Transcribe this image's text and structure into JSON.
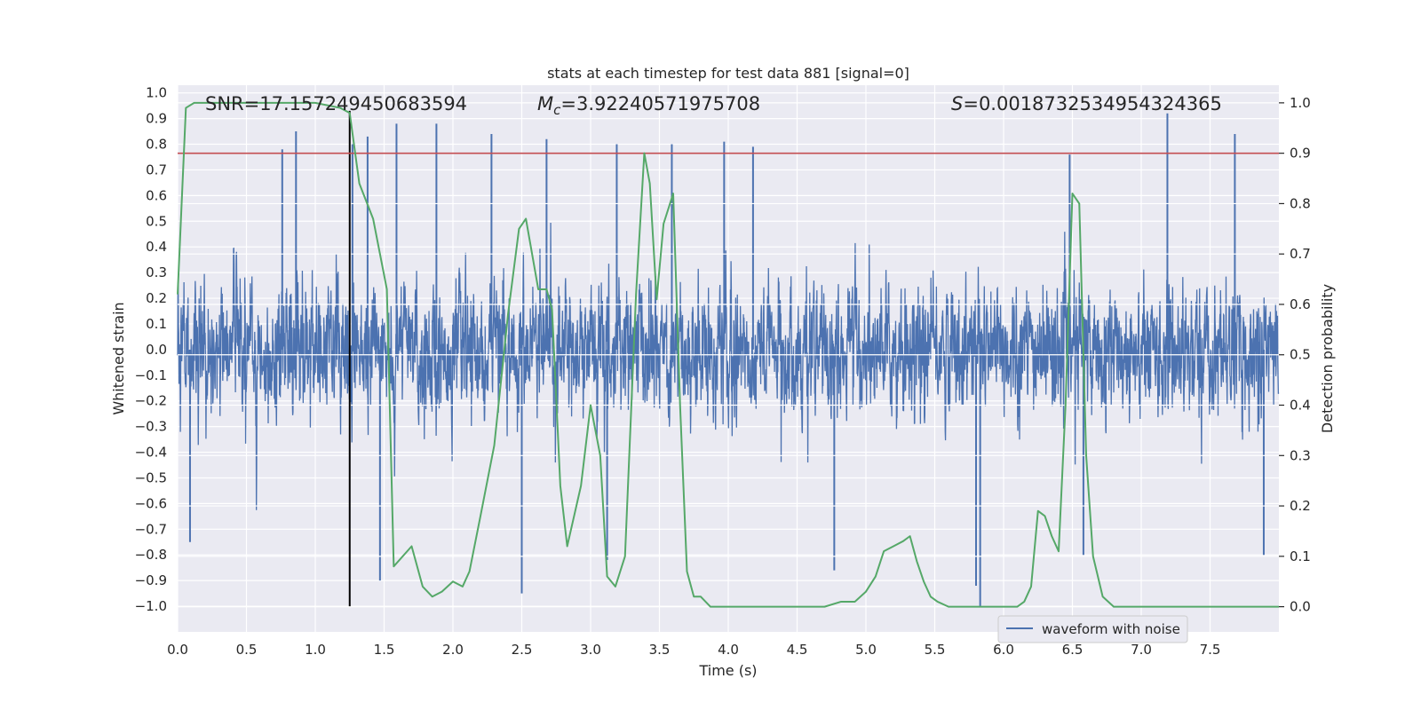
{
  "chart_data": {
    "type": "line",
    "title": "stats at each timestep for test data 881 [signal=0]",
    "xlabel": "Time (s)",
    "ylabel": "Whitened strain",
    "y2label": "Detection probability",
    "xlim": [
      0,
      8
    ],
    "ylim": [
      -1.1,
      1.03
    ],
    "y2lim": [
      -0.05,
      1.035
    ],
    "x_ticks": [
      0.0,
      0.5,
      1.0,
      1.5,
      2.0,
      2.5,
      3.0,
      3.5,
      4.0,
      4.5,
      5.0,
      5.5,
      6.0,
      6.5,
      7.0,
      7.5
    ],
    "x_tick_labels": [
      "0.0",
      "0.5",
      "1.0",
      "1.5",
      "2.0",
      "2.5",
      "3.0",
      "3.5",
      "4.0",
      "4.5",
      "5.0",
      "5.5",
      "6.0",
      "6.5",
      "7.0",
      "7.5"
    ],
    "y_ticks": [
      -1.0,
      -0.9,
      -0.8,
      -0.7,
      -0.6,
      -0.5,
      -0.4,
      -0.3,
      -0.2,
      -0.1,
      0.0,
      0.1,
      0.2,
      0.3,
      0.4,
      0.5,
      0.6,
      0.7,
      0.8,
      0.9,
      1.0
    ],
    "y_tick_labels": [
      "−1.0",
      "−0.9",
      "−0.8",
      "−0.7",
      "−0.6",
      "−0.5",
      "−0.4",
      "−0.3",
      "−0.2",
      "−0.1",
      "0.0",
      "0.1",
      "0.2",
      "0.3",
      "0.4",
      "0.5",
      "0.6",
      "0.7",
      "0.8",
      "0.9",
      "1.0"
    ],
    "y2_ticks": [
      0.0,
      0.1,
      0.2,
      0.3,
      0.4,
      0.5,
      0.6,
      0.7,
      0.8,
      0.9,
      1.0
    ],
    "y2_tick_labels": [
      "0.0",
      "0.1",
      "0.2",
      "0.3",
      "0.4",
      "0.5",
      "0.6",
      "0.7",
      "0.8",
      "0.9",
      "1.0"
    ],
    "grid": true,
    "legend": {
      "placement": "lower-right",
      "entries": [
        "waveform with noise"
      ]
    },
    "annotations": {
      "snr": "SNR=17.157249450683594",
      "mc_symbol": "M",
      "mc_sub": "c",
      "mc_value": "=3.92240571975708",
      "s_symbol": "S",
      "s_value": "=0.0018732534954324365"
    },
    "threshold": {
      "axis": "y2",
      "value": 0.9,
      "color": "#c44e52"
    },
    "marker_line": {
      "x": 1.25,
      "y_from": -1.0,
      "y_to": 0.93,
      "color": "#000000"
    },
    "series": [
      {
        "name": "waveform with noise",
        "axis": "y",
        "color": "#4c72b0",
        "kind": "noise",
        "envelope_typical": 0.45,
        "spike_peaks_positive": [
          {
            "x": 0.76,
            "y": 0.78
          },
          {
            "x": 0.86,
            "y": 0.85
          },
          {
            "x": 1.27,
            "y": 0.8
          },
          {
            "x": 1.38,
            "y": 0.83
          },
          {
            "x": 1.59,
            "y": 0.88
          },
          {
            "x": 1.88,
            "y": 0.88
          },
          {
            "x": 2.28,
            "y": 0.84
          },
          {
            "x": 2.68,
            "y": 0.82
          },
          {
            "x": 3.19,
            "y": 0.8
          },
          {
            "x": 3.59,
            "y": 0.8
          },
          {
            "x": 3.97,
            "y": 0.81
          },
          {
            "x": 4.18,
            "y": 0.79
          },
          {
            "x": 6.48,
            "y": 0.76
          },
          {
            "x": 7.19,
            "y": 0.92
          },
          {
            "x": 7.68,
            "y": 0.84
          }
        ],
        "spike_peaks_negative": [
          {
            "x": 0.09,
            "y": -0.75
          },
          {
            "x": 1.47,
            "y": -0.9
          },
          {
            "x": 2.5,
            "y": -0.95
          },
          {
            "x": 3.12,
            "y": -0.82
          },
          {
            "x": 4.77,
            "y": -0.86
          },
          {
            "x": 5.83,
            "y": -1.0
          },
          {
            "x": 5.8,
            "y": -0.92
          },
          {
            "x": 6.58,
            "y": -0.8
          },
          {
            "x": 7.89,
            "y": -0.8
          }
        ]
      },
      {
        "name": "",
        "axis": "y2",
        "color": "#55a868",
        "kind": "line",
        "x": [
          0.0,
          0.06,
          0.12,
          0.25,
          0.5,
          0.75,
          1.0,
          1.18,
          1.25,
          1.32,
          1.42,
          1.52,
          1.57,
          1.7,
          1.78,
          1.85,
          1.92,
          2.0,
          2.07,
          2.12,
          2.2,
          2.3,
          2.4,
          2.48,
          2.53,
          2.62,
          2.68,
          2.72,
          2.78,
          2.83,
          2.88,
          2.93,
          3.0,
          3.07,
          3.12,
          3.18,
          3.25,
          3.33,
          3.39,
          3.43,
          3.48,
          3.53,
          3.6,
          3.65,
          3.7,
          3.75,
          3.8,
          3.87,
          3.93,
          4.0,
          4.2,
          4.5,
          4.7,
          4.82,
          4.92,
          5.0,
          5.07,
          5.13,
          5.2,
          5.27,
          5.32,
          5.37,
          5.42,
          5.47,
          5.52,
          5.6,
          5.8,
          6.0,
          6.1,
          6.15,
          6.2,
          6.25,
          6.3,
          6.35,
          6.4,
          6.45,
          6.5,
          6.55,
          6.6,
          6.65,
          6.72,
          6.8,
          6.9,
          7.0,
          7.5,
          8.0
        ],
        "y": [
          0.62,
          0.99,
          1.0,
          1.0,
          1.0,
          1.0,
          1.0,
          0.99,
          0.98,
          0.84,
          0.77,
          0.63,
          0.08,
          0.12,
          0.04,
          0.02,
          0.03,
          0.05,
          0.04,
          0.07,
          0.18,
          0.32,
          0.58,
          0.75,
          0.77,
          0.63,
          0.63,
          0.59,
          0.24,
          0.12,
          0.18,
          0.24,
          0.4,
          0.3,
          0.06,
          0.04,
          0.1,
          0.62,
          0.9,
          0.84,
          0.61,
          0.76,
          0.82,
          0.4,
          0.07,
          0.02,
          0.02,
          0.0,
          0.0,
          0.0,
          0.0,
          0.0,
          0.0,
          0.01,
          0.01,
          0.03,
          0.06,
          0.11,
          0.12,
          0.13,
          0.14,
          0.09,
          0.05,
          0.02,
          0.01,
          0.0,
          0.0,
          0.0,
          0.0,
          0.01,
          0.04,
          0.19,
          0.18,
          0.14,
          0.11,
          0.4,
          0.82,
          0.8,
          0.3,
          0.1,
          0.02,
          0.0,
          0.0,
          0.0,
          0.0,
          0.0
        ]
      }
    ]
  }
}
